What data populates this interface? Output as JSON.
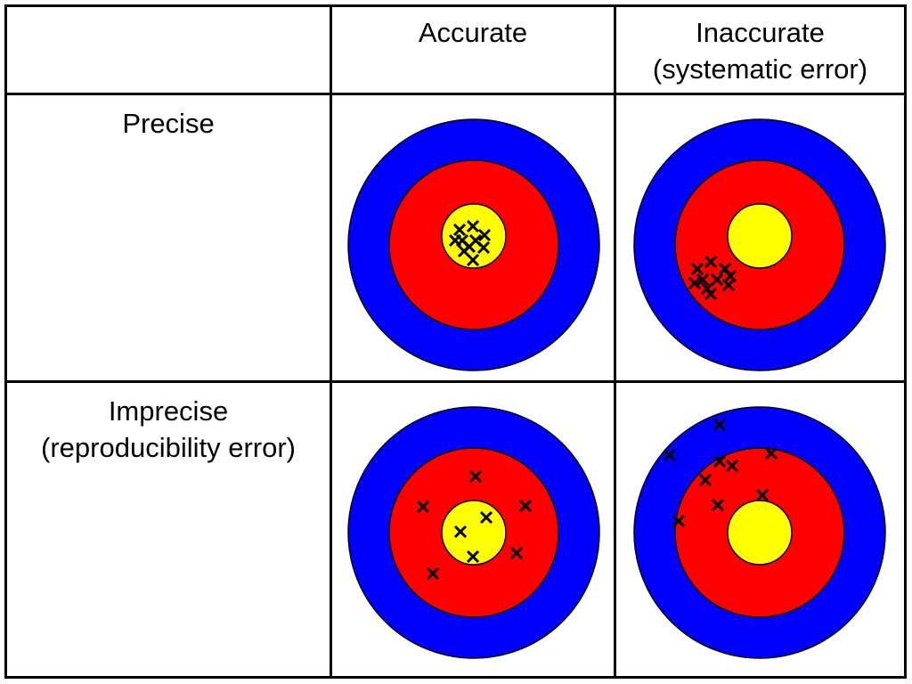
{
  "header": {
    "columns": [
      {
        "lines": [
          "Accurate"
        ]
      },
      {
        "lines": [
          "Inaccurate",
          "(systematic error)"
        ]
      }
    ]
  },
  "rows": [
    {
      "lines": [
        "Precise"
      ]
    },
    {
      "lines": [
        "Imprecise",
        "(reproducibility error)"
      ]
    }
  ],
  "colors": {
    "outer_ring": "#0000ff",
    "middle_ring": "#ff0000",
    "bullseye": "#ffff00",
    "mark": "#000000",
    "grid_line": "#000000"
  },
  "targets": [
    {
      "name": "accurate-precise",
      "hits": 10
    },
    {
      "name": "inaccurate-precise",
      "hits": 10
    },
    {
      "name": "accurate-imprecise",
      "hits": 8
    },
    {
      "name": "inaccurate-imprecise",
      "hits": 9
    }
  ]
}
